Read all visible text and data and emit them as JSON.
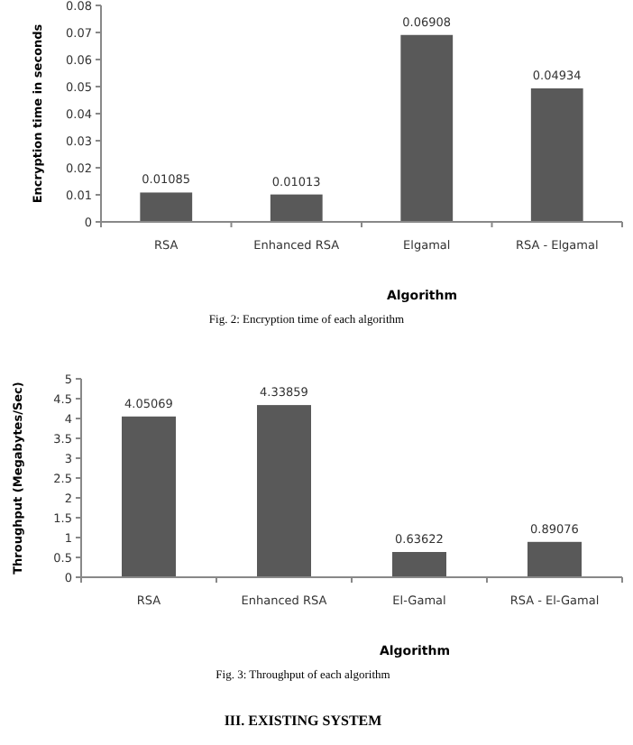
{
  "chart_data": [
    {
      "type": "bar",
      "xlabel": "Algorithm",
      "ylabel": "Encryption time in seconds",
      "categories": [
        "RSA",
        "Enhanced RSA",
        "Elgamal",
        "RSA - Elgamal"
      ],
      "values": [
        0.01085,
        0.01013,
        0.06908,
        0.04934
      ],
      "color": "#595959",
      "ylim": [
        0,
        0.08
      ],
      "yticks": [
        0,
        0.01,
        0.02,
        0.03,
        0.04,
        0.05,
        0.06,
        0.07,
        0.08
      ],
      "data_labels": true,
      "grid": false,
      "annotations": [
        "Fig. 2: Encryption time of each algorithm"
      ]
    },
    {
      "type": "bar",
      "xlabel": "Algorithm",
      "ylabel": "Throughput (Megabytes/Sec)",
      "categories": [
        "RSA",
        "Enhanced RSA",
        "El-Gamal",
        "RSA - El-Gamal"
      ],
      "values": [
        4.05069,
        4.33859,
        0.63622,
        0.89076
      ],
      "color": "#595959",
      "ylim": [
        0,
        5
      ],
      "yticks": [
        0,
        0.5,
        1,
        1.5,
        2,
        2.5,
        3,
        3.5,
        4,
        4.5,
        5
      ],
      "data_labels": true,
      "grid": false,
      "annotations": [
        "Fig. 3: Throughput of each algorithm",
        "III. EXISTING SYSTEM"
      ]
    }
  ]
}
